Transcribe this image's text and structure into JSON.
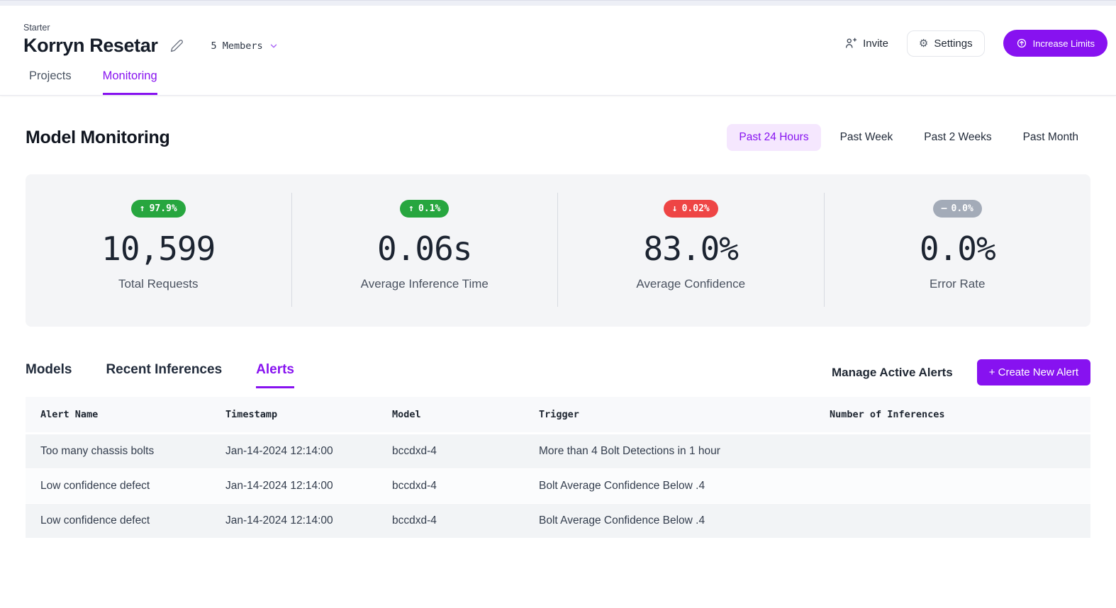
{
  "header": {
    "plan": "Starter",
    "workspace_name": "Korryn Resetar",
    "members_label": "5 Members",
    "invite_label": "Invite",
    "settings_label": "Settings",
    "increase_limits_label": "Increase Limits"
  },
  "nav_tabs": [
    {
      "label": "Projects",
      "active": false
    },
    {
      "label": "Monitoring",
      "active": true
    }
  ],
  "page": {
    "title": "Model Monitoring",
    "time_filters": [
      {
        "label": "Past 24 Hours",
        "active": true
      },
      {
        "label": "Past Week",
        "active": false
      },
      {
        "label": "Past 2 Weeks",
        "active": false
      },
      {
        "label": "Past Month",
        "active": false
      }
    ]
  },
  "stats": [
    {
      "delta_icon": "↑",
      "delta": "97.9%",
      "badge_color": "#27a63f",
      "value": "10,599",
      "label": "Total Requests"
    },
    {
      "delta_icon": "↑",
      "delta": "0.1%",
      "badge_color": "#27a63f",
      "value": "0.06s",
      "label": "Average Inference Time"
    },
    {
      "delta_icon": "↓",
      "delta": "0.02%",
      "badge_color": "#ee4545",
      "value": "83.0%",
      "label": "Average Confidence"
    },
    {
      "delta_icon": "—",
      "delta": "0.0%",
      "badge_color": "#a3abb8",
      "value": "0.0%",
      "label": "Error Rate"
    }
  ],
  "section_tabs": [
    {
      "label": "Models",
      "active": false
    },
    {
      "label": "Recent Inferences",
      "active": false
    },
    {
      "label": "Alerts",
      "active": true
    }
  ],
  "alerts_toolbar": {
    "manage_label": "Manage Active Alerts",
    "create_label": "+ Create New Alert"
  },
  "table": {
    "columns": [
      "Alert Name",
      "Timestamp",
      "Model",
      "Trigger",
      "Number of Inferences"
    ],
    "rows": [
      [
        "Too many chassis bolts",
        "Jan-14-2024 12:14:00",
        "bccdxd-4",
        "More than 4 Bolt Detections in 1 hour",
        ""
      ],
      [
        "Low confidence defect",
        "Jan-14-2024 12:14:00",
        "bccdxd-4",
        "Bolt Average Confidence Below .4",
        ""
      ],
      [
        "Low confidence defect",
        "Jan-14-2024 12:14:00",
        "bccdxd-4",
        "Bolt Average Confidence Below .4",
        ""
      ]
    ]
  },
  "colors": {
    "accent": "#8712f0",
    "accent_light_bg": "#f5e7fe",
    "green": "#27a63f",
    "red": "#ee4545",
    "gray": "#a3abb8"
  }
}
